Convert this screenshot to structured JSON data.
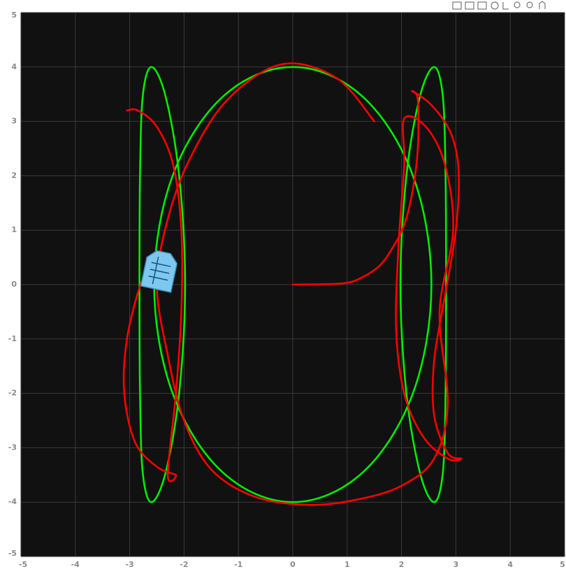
{
  "chart_data": {
    "type": "line",
    "xlim": [
      -5,
      5
    ],
    "ylim": [
      -5,
      5
    ],
    "xticks": [
      -5,
      -4,
      -3,
      -2,
      -1,
      0,
      1,
      2,
      3,
      4,
      5
    ],
    "yticks": [
      -5,
      -4,
      -3,
      -2,
      -1,
      0,
      1,
      2,
      3,
      4,
      5
    ],
    "grid": true,
    "series": [
      {
        "color": "#00ee00",
        "x": [
          0,
          0.66,
          1.28,
          1.8,
          2.21,
          2.46,
          2.55,
          2.46,
          2.21,
          1.8,
          1.28,
          0.66,
          0,
          -0.66,
          -1.28,
          -1.8,
          -2.21,
          -2.46,
          -2.55,
          -2.46,
          -2.21,
          -1.8,
          -1.28,
          -0.66,
          0,
          null,
          2.6,
          2.76,
          2.81,
          2.82,
          2.81,
          2.76,
          2.6,
          2.34,
          2.09,
          1.98,
          2.09,
          2.34,
          2.6,
          null,
          -2.6,
          -2.76,
          -2.81,
          -2.82,
          -2.81,
          -2.76,
          -2.6,
          -2.34,
          -2.09,
          -1.98,
          -2.09,
          -2.34,
          -2.6
        ],
        "values": [
          4,
          3.86,
          3.46,
          2.83,
          2,
          1.04,
          0,
          -1.04,
          -2,
          -2.83,
          -3.46,
          -3.86,
          -4,
          -3.86,
          -3.46,
          -2.83,
          -2,
          -1.04,
          0,
          1.04,
          2,
          2.83,
          3.46,
          3.86,
          4,
          null,
          4,
          3.46,
          2,
          0,
          -2,
          -3.46,
          -4,
          -3.46,
          -2,
          0,
          2,
          3.46,
          4,
          null,
          4,
          3.46,
          2,
          0,
          -2,
          -3.46,
          -4,
          -3.46,
          -2,
          0,
          2,
          3.46,
          4
        ]
      },
      {
        "color": "#ff0000",
        "x": [
          0,
          0.9,
          1.25,
          1.6,
          1.85,
          2.05,
          2.2,
          2.3,
          2.3,
          2.2,
          2.55,
          2.9,
          3.05,
          3.0,
          2.8,
          2.6,
          2.6,
          2.85,
          3.1,
          2.85,
          2.4,
          2.05,
          1.9,
          1.95,
          2.05,
          2.05,
          2.45,
          2.8,
          2.95,
          2.7,
          2.85,
          2.6,
          2.0,
          1.2,
          0.3,
          -0.7,
          -1.5,
          -2.0,
          -2.3,
          -2.5,
          -2.3,
          -1.9,
          -1.2,
          -0.2,
          0.8,
          1.5,
          null,
          -3.05,
          -2.85,
          -2.5,
          -2.2,
          -2.05,
          -2.05,
          -2.15,
          -2.3,
          -2.15,
          -2.5,
          -2.9,
          -3.1,
          -3.05,
          -2.8,
          -2.6
        ],
        "values": [
          0,
          0.02,
          0.12,
          0.35,
          0.7,
          1.1,
          1.7,
          2.5,
          3.4,
          3.55,
          3.3,
          2.8,
          2.1,
          1.0,
          -0.2,
          -1.4,
          -2.4,
          -3.1,
          -3.2,
          -3.2,
          -2.8,
          -2.0,
          -0.8,
          0.8,
          2.2,
          3.05,
          2.9,
          2.2,
          1.0,
          -0.5,
          -2.2,
          -3.2,
          -3.7,
          -3.95,
          -4.05,
          -3.9,
          -3.4,
          -2.5,
          -1.3,
          0,
          1.2,
          2.3,
          3.4,
          4.05,
          3.8,
          3.0,
          null,
          3.2,
          3.2,
          2.9,
          2.2,
          1.0,
          -0.5,
          -2.0,
          -3.5,
          -3.5,
          -3.35,
          -2.9,
          -2.0,
          -1.0,
          0,
          0.3
        ]
      }
    ]
  }
}
